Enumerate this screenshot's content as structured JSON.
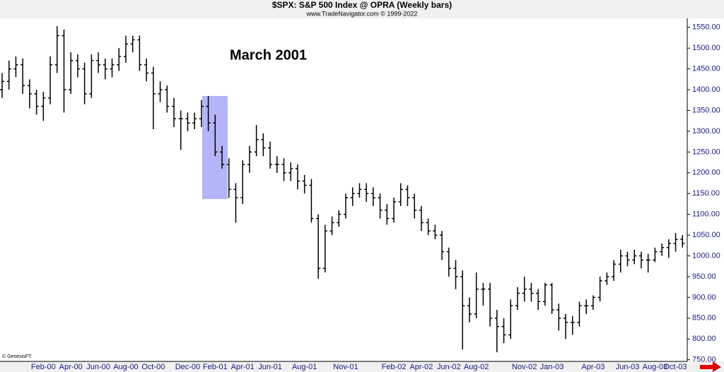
{
  "chart_data": {
    "type": "ohlc",
    "title": "$SPX:  S&P 500 Index @ OPRA  (Weekly bars)",
    "subtitle": "www.TradeNavigator.com © 1999-2022",
    "annotation": "March 2001",
    "credit": "© GenesisFT",
    "color": "#000000",
    "categories": [
      null,
      null,
      null,
      null,
      null,
      null,
      "Feb-00",
      null,
      null,
      null,
      "Apr-00",
      null,
      null,
      null,
      "Jun-00",
      null,
      null,
      null,
      "Aug-00",
      null,
      null,
      null,
      "Oct-00",
      null,
      null,
      null,
      null,
      "Dec-00",
      null,
      null,
      null,
      "Feb-01",
      null,
      null,
      null,
      "Apr-01",
      null,
      null,
      null,
      "Jun-01",
      null,
      null,
      null,
      null,
      "Aug-01",
      null,
      null,
      null,
      null,
      null,
      "Nov-01",
      null,
      null,
      null,
      null,
      null,
      null,
      "Feb-02",
      null,
      null,
      null,
      "Apr-02",
      null,
      null,
      null,
      "Jun-02",
      null,
      null,
      null,
      "Aug-02",
      null,
      null,
      null,
      null,
      null,
      null,
      "Nov-02",
      null,
      null,
      null,
      "Jan-03",
      null,
      null,
      null,
      null,
      null,
      "Apr-03",
      null,
      null,
      null,
      null,
      "Jun-03",
      null,
      null,
      null,
      "Aug-03",
      null,
      null,
      null,
      "Oct-03"
    ],
    "open": [
      1400,
      1420,
      1450,
      1460,
      1410,
      1390,
      1360,
      1380,
      1460,
      1530,
      1400,
      1470,
      1450,
      1390,
      1470,
      1460,
      1450,
      1460,
      1480,
      1510,
      1520,
      1460,
      1440,
      1390,
      1400,
      1360,
      1330,
      1330,
      1320,
      1330,
      1360,
      1320,
      1250,
      1220,
      1160,
      1140,
      1220,
      1250,
      1280,
      1260,
      1220,
      1220,
      1200,
      1210,
      1180,
      1170,
      1090,
      970,
      1060,
      1080,
      1100,
      1140,
      1150,
      1160,
      1150,
      1140,
      1110,
      1090,
      1130,
      1160,
      1140,
      1110,
      1080,
      1060,
      1050,
      1010,
      970,
      950,
      880,
      860,
      920,
      920,
      850,
      830,
      810,
      880,
      910,
      920,
      910,
      890,
      930,
      870,
      850,
      840,
      840,
      880,
      880,
      900,
      940,
      950,
      980,
      1000,
      990,
      1000,
      990,
      990,
      1010,
      1020,
      1030,
      1040
    ],
    "high": [
      1440,
      1470,
      1480,
      1475,
      1425,
      1400,
      1395,
      1480,
      1553,
      1545,
      1490,
      1485,
      1465,
      1485,
      1490,
      1475,
      1475,
      1500,
      1530,
      1530,
      1530,
      1475,
      1455,
      1420,
      1410,
      1380,
      1350,
      1345,
      1345,
      1375,
      1385,
      1340,
      1265,
      1235,
      1175,
      1230,
      1265,
      1315,
      1295,
      1275,
      1240,
      1235,
      1225,
      1220,
      1195,
      1185,
      1100,
      1075,
      1095,
      1110,
      1150,
      1165,
      1175,
      1175,
      1165,
      1150,
      1125,
      1140,
      1175,
      1170,
      1150,
      1120,
      1090,
      1075,
      1060,
      1020,
      990,
      965,
      900,
      960,
      935,
      935,
      870,
      850,
      895,
      925,
      950,
      935,
      920,
      935,
      935,
      885,
      860,
      855,
      890,
      895,
      905,
      950,
      960,
      990,
      1015,
      1010,
      1015,
      1010,
      1005,
      1020,
      1030,
      1040,
      1055,
      1050
    ],
    "low": [
      1380,
      1400,
      1430,
      1390,
      1355,
      1340,
      1325,
      1365,
      1440,
      1345,
      1390,
      1430,
      1365,
      1380,
      1440,
      1425,
      1430,
      1445,
      1465,
      1490,
      1445,
      1420,
      1305,
      1370,
      1345,
      1310,
      1255,
      1300,
      1305,
      1310,
      1300,
      1240,
      1210,
      1140,
      1080,
      1125,
      1200,
      1240,
      1240,
      1210,
      1200,
      1180,
      1180,
      1160,
      1150,
      1080,
      945,
      960,
      1050,
      1070,
      1090,
      1120,
      1140,
      1130,
      1120,
      1090,
      1075,
      1080,
      1120,
      1120,
      1090,
      1060,
      1050,
      1040,
      990,
      950,
      920,
      775,
      840,
      850,
      880,
      830,
      768,
      790,
      800,
      870,
      890,
      890,
      870,
      880,
      860,
      820,
      800,
      810,
      830,
      860,
      870,
      890,
      930,
      940,
      960,
      975,
      980,
      970,
      960,
      985,
      1000,
      995,
      1010,
      1020
    ],
    "close": [
      1420,
      1450,
      1460,
      1410,
      1390,
      1360,
      1380,
      1460,
      1530,
      1400,
      1470,
      1450,
      1390,
      1470,
      1460,
      1450,
      1460,
      1480,
      1510,
      1520,
      1460,
      1440,
      1390,
      1400,
      1360,
      1330,
      1330,
      1320,
      1330,
      1360,
      1320,
      1250,
      1220,
      1160,
      1140,
      1220,
      1250,
      1280,
      1260,
      1220,
      1220,
      1200,
      1210,
      1180,
      1170,
      1090,
      970,
      1060,
      1080,
      1100,
      1140,
      1150,
      1160,
      1150,
      1140,
      1110,
      1090,
      1130,
      1160,
      1140,
      1110,
      1080,
      1060,
      1050,
      1010,
      970,
      950,
      880,
      860,
      920,
      920,
      850,
      830,
      810,
      880,
      910,
      920,
      910,
      890,
      930,
      870,
      850,
      840,
      840,
      880,
      880,
      900,
      940,
      950,
      980,
      1000,
      990,
      1000,
      990,
      990,
      1010,
      1020,
      1030,
      1040,
      1030
    ],
    "ylim": [
      746,
      1570
    ],
    "yticks": [
      {
        "value": 750,
        "label": "750.00"
      },
      {
        "value": 800,
        "label": "800.00"
      },
      {
        "value": 850,
        "label": "850.00"
      },
      {
        "value": 900,
        "label": "900.00"
      },
      {
        "value": 950,
        "label": "950.00"
      },
      {
        "value": 1000,
        "label": "1000.00"
      },
      {
        "value": 1050,
        "label": "1050.00"
      },
      {
        "value": 1100,
        "label": "1100.00"
      },
      {
        "value": 1150,
        "label": "1150.00"
      },
      {
        "value": 1200,
        "label": "1200.00"
      },
      {
        "value": 1250,
        "label": "1250.00"
      },
      {
        "value": 1300,
        "label": "1300.00"
      },
      {
        "value": 1350,
        "label": "1350.00"
      },
      {
        "value": 1400,
        "label": "1400.00"
      },
      {
        "value": 1450,
        "label": "1450.00"
      },
      {
        "value": 1500,
        "label": "1500.00"
      },
      {
        "value": 1550,
        "label": "1550.00"
      }
    ]
  }
}
